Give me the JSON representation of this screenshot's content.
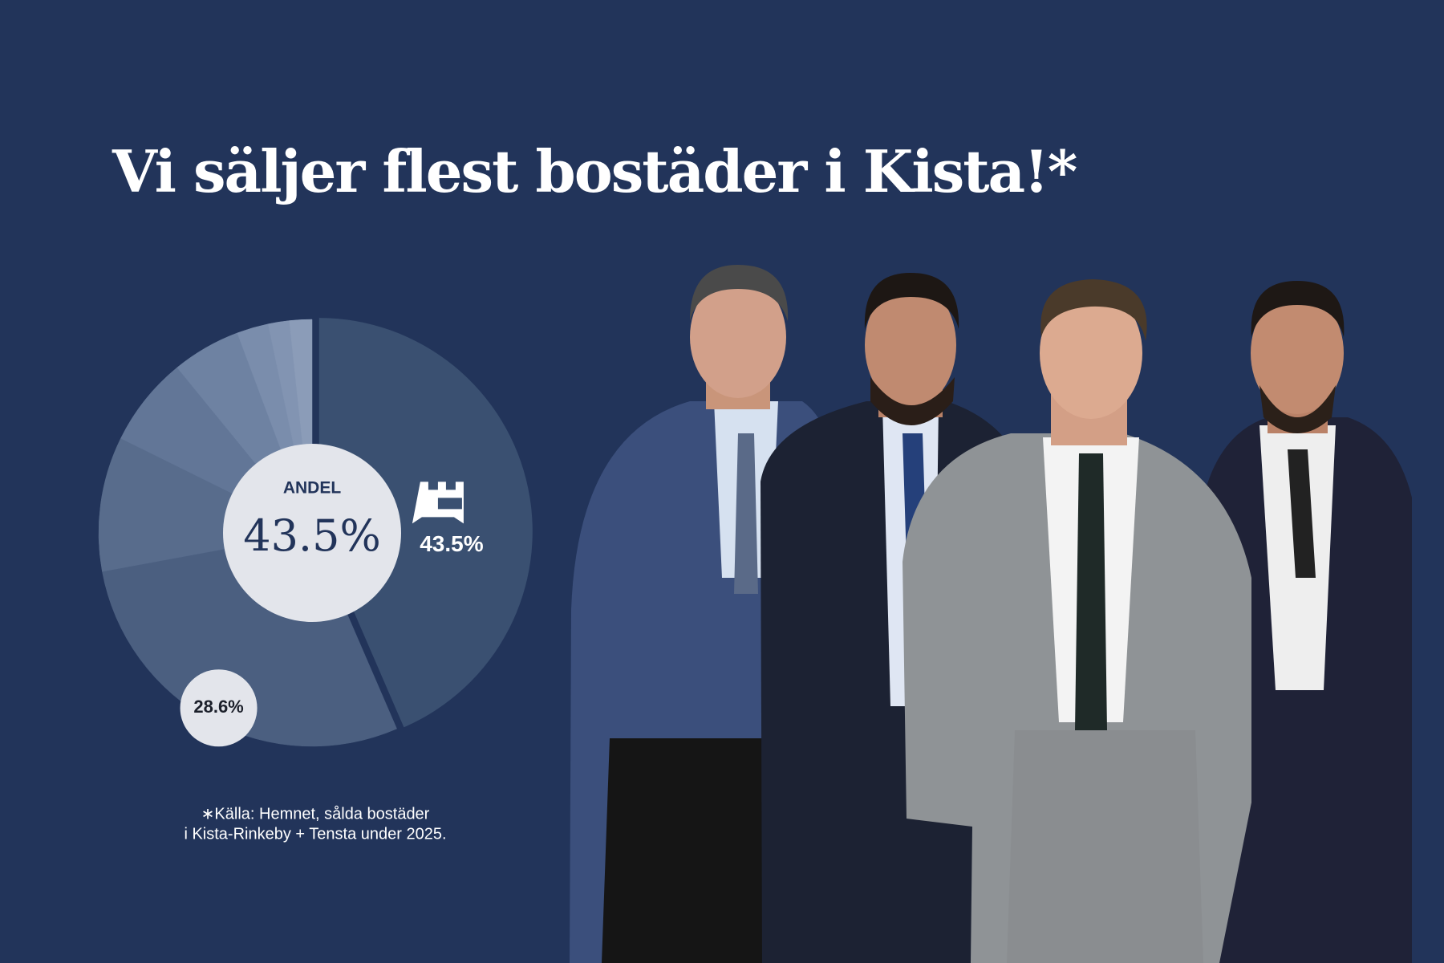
{
  "chart_data": {
    "type": "pie",
    "title": "Vi säljer flest bostäder i Kista!*",
    "center_label": "ANDEL",
    "values": [
      43.5,
      28.6,
      10.2,
      6.8,
      5.2,
      2.4,
      1.6,
      1.7
    ],
    "value_labels": [
      "43.5%",
      "28.6%",
      null,
      null,
      null,
      null,
      null,
      null
    ],
    "colors": [
      "#3a5071",
      "#4b5f80",
      "#586c8c",
      "#627697",
      "#6e82a2",
      "#7a8dac",
      "#8294b2",
      "#8b9cb8"
    ],
    "footnote": [
      "∗Källa: Hemnet, sålda bostäder",
      "i Kista-Rinkeby + Tensta under 2025."
    ]
  }
}
